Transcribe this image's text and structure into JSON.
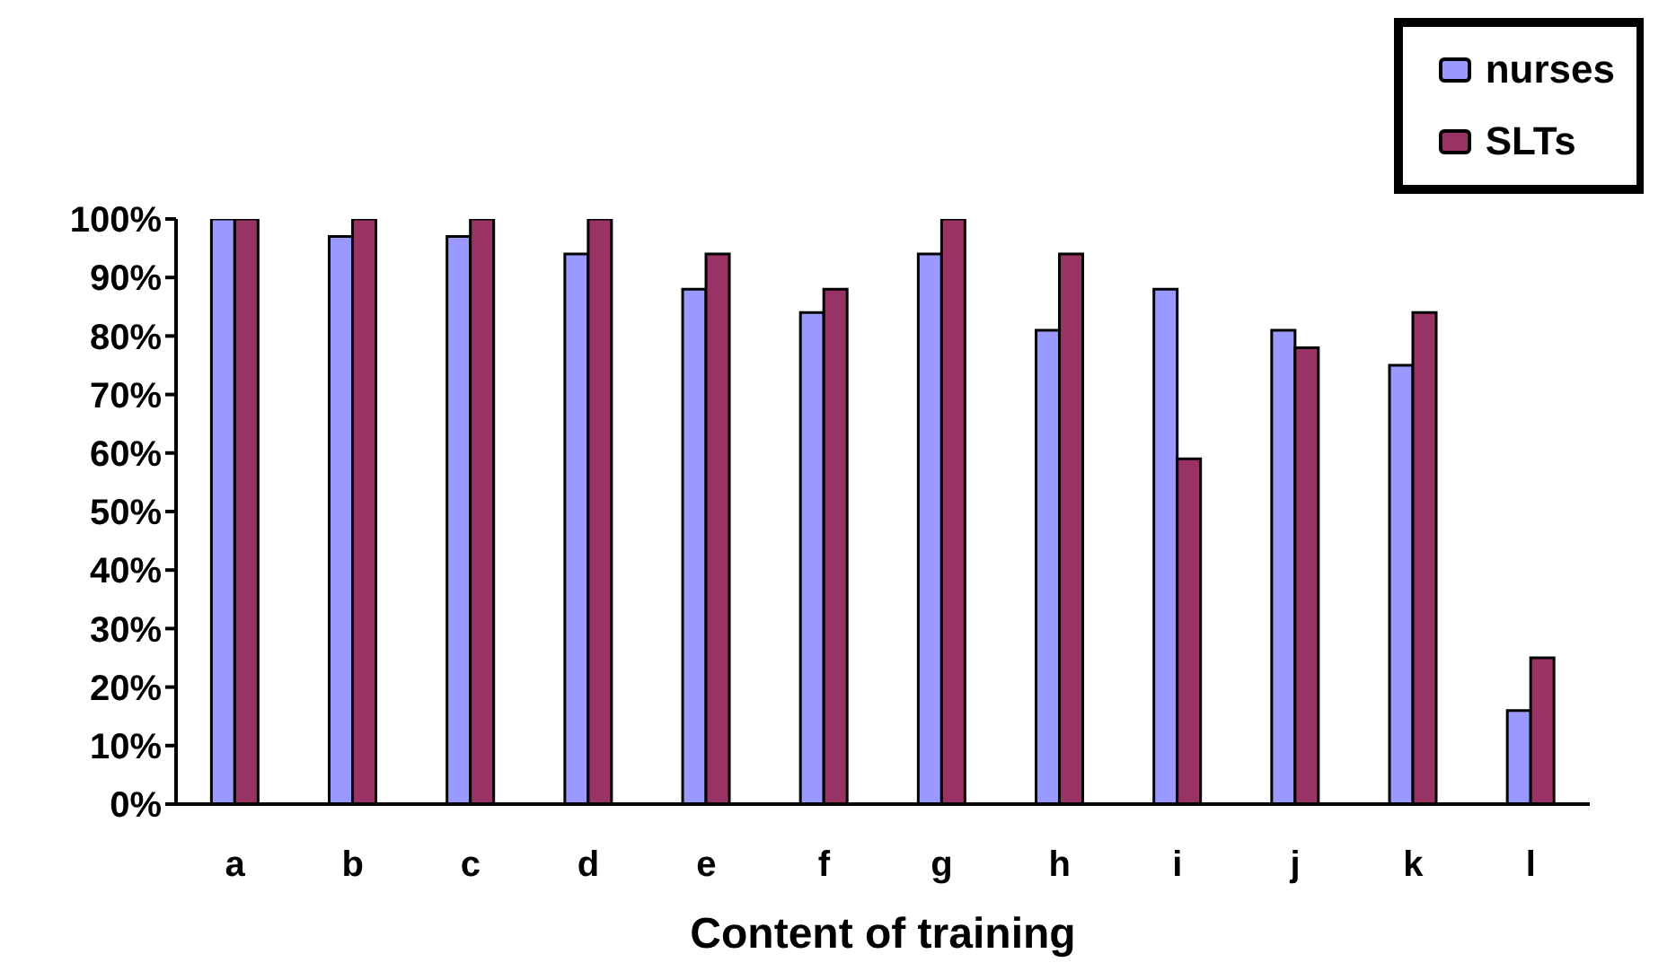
{
  "chart_data": {
    "type": "bar",
    "xlabel": "Content of training",
    "categories": [
      "a",
      "b",
      "c",
      "d",
      "e",
      "f",
      "g",
      "h",
      "i",
      "j",
      "k",
      "l"
    ],
    "series": [
      {
        "name": "nurses",
        "color": "#9999ff",
        "values": [
          100,
          97,
          97,
          94,
          88,
          84,
          94,
          81,
          88,
          81,
          75,
          16
        ]
      },
      {
        "name": "SLTs",
        "color": "#993366",
        "values": [
          100,
          100,
          100,
          100,
          94,
          88,
          100,
          94,
          59,
          78,
          84,
          25
        ]
      }
    ],
    "ylim": [
      0,
      100
    ],
    "yticks": [
      {
        "value": 0,
        "label": "0%"
      },
      {
        "value": 10,
        "label": "10%"
      },
      {
        "value": 20,
        "label": "20%"
      },
      {
        "value": 30,
        "label": "30%"
      },
      {
        "value": 40,
        "label": "40%"
      },
      {
        "value": 50,
        "label": "50%"
      },
      {
        "value": 60,
        "label": "60%"
      },
      {
        "value": 70,
        "label": "70%"
      },
      {
        "value": 80,
        "label": "80%"
      },
      {
        "value": 90,
        "label": "90%"
      },
      {
        "value": 100,
        "label": "100%"
      }
    ],
    "grid": false,
    "legend": "top right"
  }
}
